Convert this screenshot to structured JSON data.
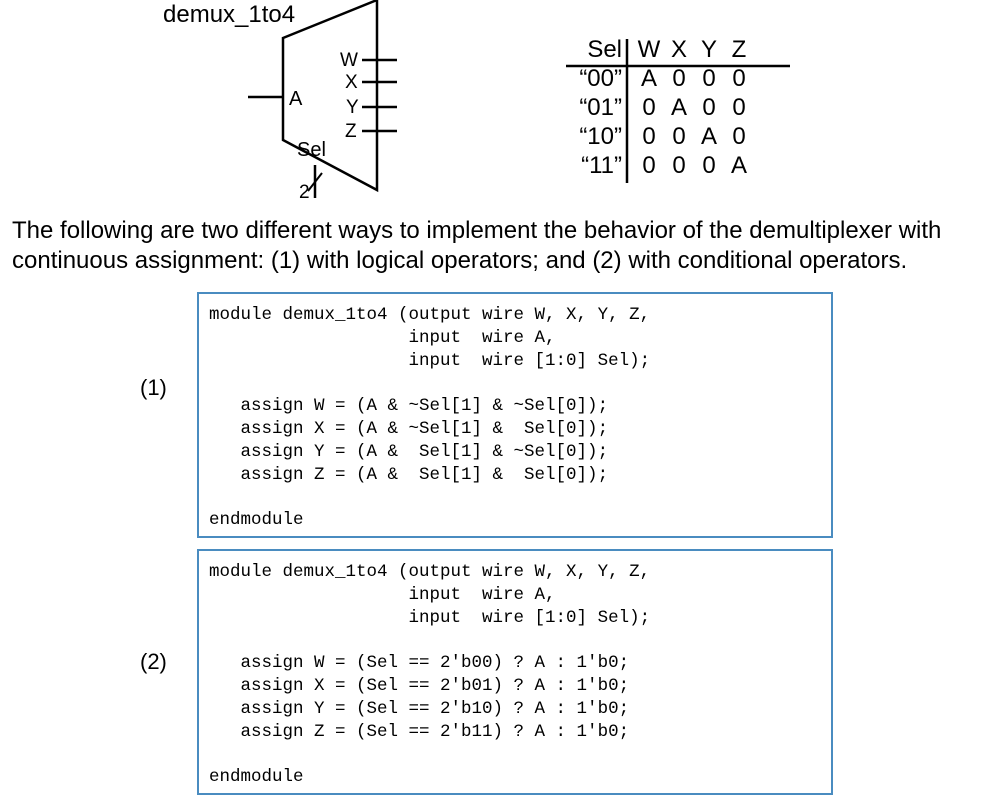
{
  "diagram": {
    "module_name": "demux_1to4",
    "input_label": "A",
    "outputs": [
      "W",
      "X",
      "Y",
      "Z"
    ],
    "select_label": "Sel",
    "select_width": "2"
  },
  "truth_table": {
    "headers": [
      "Sel",
      "W",
      "X",
      "Y",
      "Z"
    ],
    "rows": [
      [
        "“00”",
        "A",
        "0",
        "0",
        "0"
      ],
      [
        "“01”",
        "0",
        "A",
        "0",
        "0"
      ],
      [
        "“10”",
        "0",
        "0",
        "A",
        "0"
      ],
      [
        "“11”",
        "0",
        "0",
        "0",
        "A"
      ]
    ]
  },
  "intro_text": {
    "line1": "The following are two different ways to implement the behavior of the demultiplexer with",
    "line2": "continuous assignment: (1) with logical operators; and (2) with conditional operators."
  },
  "implementations": [
    {
      "label": "(1)",
      "code": "module demux_1to4 (output wire W, X, Y, Z,\n                   input  wire A,\n                   input  wire [1:0] Sel);\n\n   assign W = (A & ~Sel[1] & ~Sel[0]);\n   assign X = (A & ~Sel[1] &  Sel[0]);\n   assign Y = (A &  Sel[1] & ~Sel[0]);\n   assign Z = (A &  Sel[1] &  Sel[0]);\n\nendmodule"
    },
    {
      "label": "(2)",
      "code": "module demux_1to4 (output wire W, X, Y, Z,\n                   input  wire A,\n                   input  wire [1:0] Sel);\n\n   assign W = (Sel == 2'b00) ? A : 1'b0;\n   assign X = (Sel == 2'b01) ? A : 1'b0;\n   assign Y = (Sel == 2'b10) ? A : 1'b0;\n   assign Z = (Sel == 2'b11) ? A : 1'b0;\n\nendmodule"
    }
  ],
  "colors": {
    "code_border": "#4a8cc0"
  }
}
